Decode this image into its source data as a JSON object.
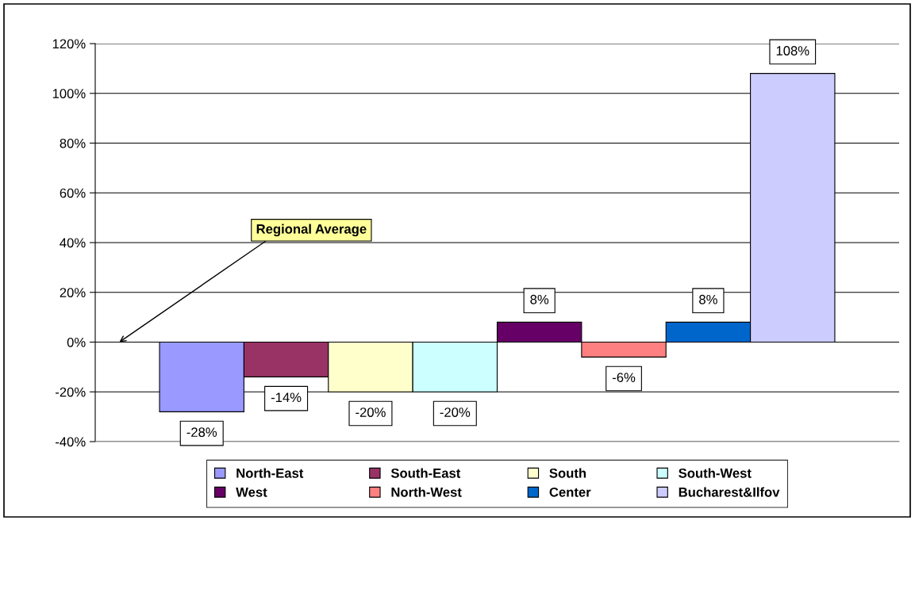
{
  "chart_data": {
    "type": "bar",
    "categories": [
      null
    ],
    "series": [
      {
        "name": "North-East",
        "color": "#9999ff",
        "values": [
          -28
        ],
        "value_labels": [
          "-28%"
        ]
      },
      {
        "name": "South-East",
        "color": "#993366",
        "values": [
          -14
        ],
        "value_labels": [
          "-14%"
        ]
      },
      {
        "name": "South",
        "color": "#ffffcc",
        "values": [
          -20
        ],
        "value_labels": [
          "-20%"
        ]
      },
      {
        "name": "South-West",
        "color": "#ccffff",
        "values": [
          -20
        ],
        "value_labels": [
          "-20%"
        ]
      },
      {
        "name": "West",
        "color": "#660066",
        "values": [
          8
        ],
        "value_labels": [
          "8%"
        ]
      },
      {
        "name": "North-West",
        "color": "#ff8080",
        "values": [
          -6
        ],
        "value_labels": [
          "-6%"
        ]
      },
      {
        "name": "Center",
        "color": "#0066cc",
        "values": [
          8
        ],
        "value_labels": [
          "8%"
        ]
      },
      {
        "name": "Bucharest&Ilfov",
        "color": "#ccccff",
        "values": [
          108
        ],
        "value_labels": [
          "108%"
        ]
      }
    ],
    "ylim": [
      -40,
      120
    ],
    "yticks": [
      {
        "value": -40,
        "label": "-40%"
      },
      {
        "value": -20,
        "label": "-20%"
      },
      {
        "value": 0,
        "label": "0%"
      },
      {
        "value": 20,
        "label": "20%"
      },
      {
        "value": 40,
        "label": "40%"
      },
      {
        "value": 60,
        "label": "60%"
      },
      {
        "value": 80,
        "label": "80%"
      },
      {
        "value": 100,
        "label": "100%"
      },
      {
        "value": 120,
        "label": "120%"
      }
    ],
    "grid": "y",
    "legend": "bottom",
    "tick_labels": "y",
    "annotations": [
      "Regional Average"
    ]
  }
}
